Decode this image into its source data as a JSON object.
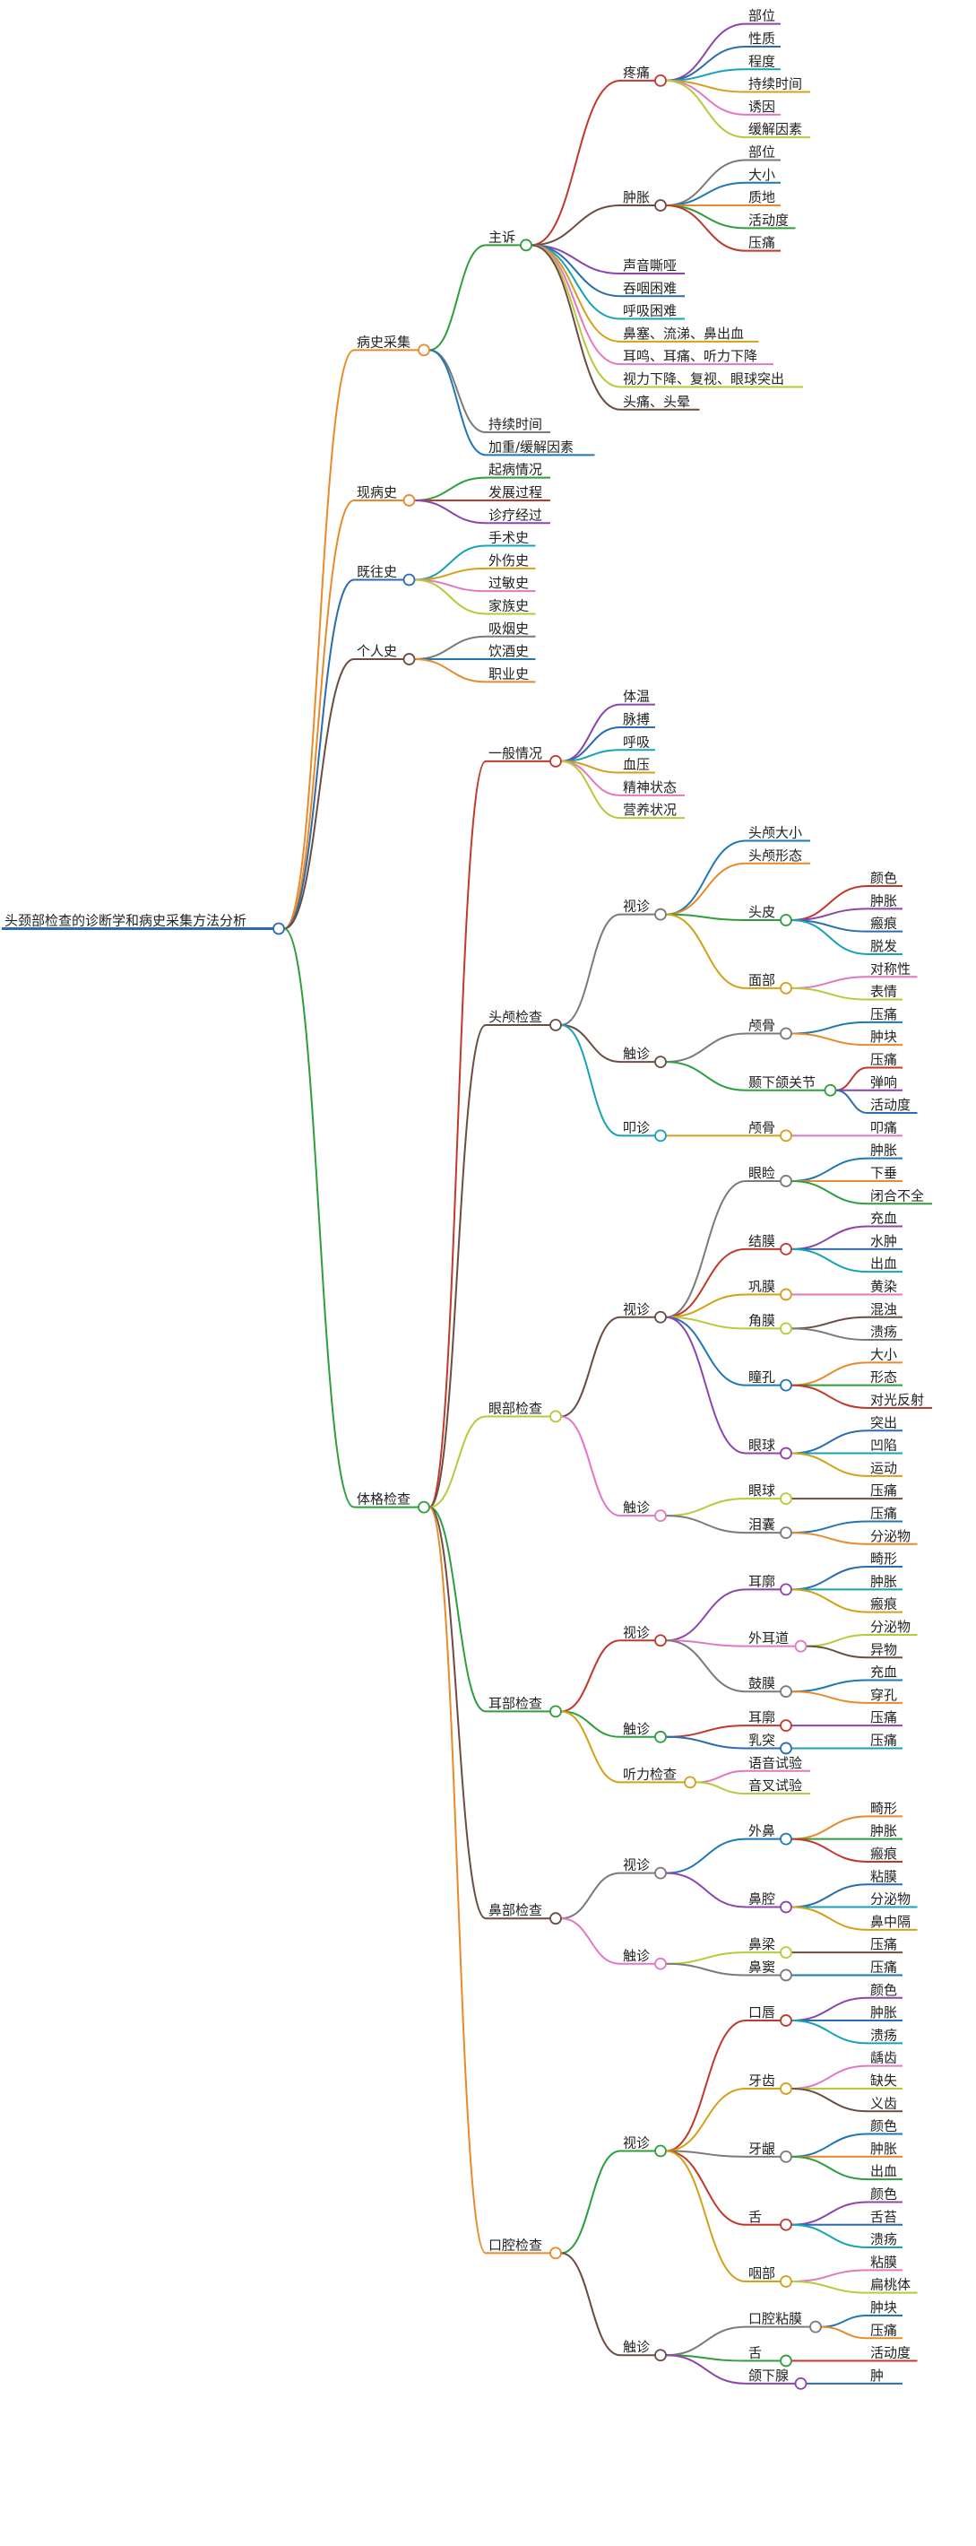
{
  "root": "头颈部检查的诊断学和病史采集方法分析",
  "branches": [
    {
      "label": "病史采集",
      "children": [
        {
          "label": "主诉",
          "children": [
            {
              "label": "疼痛",
              "children": [
                {
                  "label": "部位"
                },
                {
                  "label": "性质"
                },
                {
                  "label": "程度"
                },
                {
                  "label": "持续时间"
                },
                {
                  "label": "诱因"
                },
                {
                  "label": "缓解因素"
                }
              ]
            },
            {
              "label": "肿胀",
              "children": [
                {
                  "label": "部位"
                },
                {
                  "label": "大小"
                },
                {
                  "label": "质地"
                },
                {
                  "label": "活动度"
                },
                {
                  "label": "压痛"
                }
              ]
            },
            {
              "label": "声音嘶哑"
            },
            {
              "label": "吞咽困难"
            },
            {
              "label": "呼吸困难"
            },
            {
              "label": "鼻塞、流涕、鼻出血"
            },
            {
              "label": "耳鸣、耳痛、听力下降"
            },
            {
              "label": "视力下降、复视、眼球突出"
            },
            {
              "label": "头痛、头晕"
            }
          ]
        },
        {
          "label": "持续时间"
        },
        {
          "label": "加重/缓解因素"
        }
      ]
    },
    {
      "label": "现病史",
      "children": [
        {
          "label": "起病情况"
        },
        {
          "label": "发展过程"
        },
        {
          "label": "诊疗经过"
        }
      ]
    },
    {
      "label": "既往史",
      "children": [
        {
          "label": "手术史"
        },
        {
          "label": "外伤史"
        },
        {
          "label": "过敏史"
        },
        {
          "label": "家族史"
        }
      ]
    },
    {
      "label": "个人史",
      "children": [
        {
          "label": "吸烟史"
        },
        {
          "label": "饮酒史"
        },
        {
          "label": "职业史"
        }
      ]
    },
    {
      "label": "体格检查",
      "children": [
        {
          "label": "一般情况",
          "children": [
            {
              "label": "体温"
            },
            {
              "label": "脉搏"
            },
            {
              "label": "呼吸"
            },
            {
              "label": "血压"
            },
            {
              "label": "精神状态"
            },
            {
              "label": "营养状况"
            }
          ]
        },
        {
          "label": "头颅检查",
          "children": [
            {
              "label": "视诊",
              "children": [
                {
                  "label": "头颅大小"
                },
                {
                  "label": "头颅形态"
                },
                {
                  "label": "头皮",
                  "children": [
                    {
                      "label": "颜色"
                    },
                    {
                      "label": "肿胀"
                    },
                    {
                      "label": "瘢痕"
                    },
                    {
                      "label": "脱发"
                    }
                  ]
                },
                {
                  "label": "面部",
                  "children": [
                    {
                      "label": "对称性"
                    },
                    {
                      "label": "表情"
                    }
                  ]
                }
              ]
            },
            {
              "label": "触诊",
              "children": [
                {
                  "label": "颅骨",
                  "children": [
                    {
                      "label": "压痛"
                    },
                    {
                      "label": "肿块"
                    }
                  ]
                },
                {
                  "label": "颞下颌关节",
                  "children": [
                    {
                      "label": "压痛"
                    },
                    {
                      "label": "弹响"
                    },
                    {
                      "label": "活动度"
                    }
                  ]
                }
              ]
            },
            {
              "label": "叩诊",
              "children": [
                {
                  "label": "颅骨",
                  "children": [
                    {
                      "label": "叩痛"
                    }
                  ]
                }
              ]
            }
          ]
        },
        {
          "label": "眼部检查",
          "children": [
            {
              "label": "视诊",
              "children": [
                {
                  "label": "眼睑",
                  "children": [
                    {
                      "label": "肿胀"
                    },
                    {
                      "label": "下垂"
                    },
                    {
                      "label": "闭合不全"
                    }
                  ]
                },
                {
                  "label": "结膜",
                  "children": [
                    {
                      "label": "充血"
                    },
                    {
                      "label": "水肿"
                    },
                    {
                      "label": "出血"
                    }
                  ]
                },
                {
                  "label": "巩膜",
                  "children": [
                    {
                      "label": "黄染"
                    }
                  ]
                },
                {
                  "label": "角膜",
                  "children": [
                    {
                      "label": "混浊"
                    },
                    {
                      "label": "溃疡"
                    }
                  ]
                },
                {
                  "label": "瞳孔",
                  "children": [
                    {
                      "label": "大小"
                    },
                    {
                      "label": "形态"
                    },
                    {
                      "label": "对光反射"
                    }
                  ]
                },
                {
                  "label": "眼球",
                  "children": [
                    {
                      "label": "突出"
                    },
                    {
                      "label": "凹陷"
                    },
                    {
                      "label": "运动"
                    }
                  ]
                }
              ]
            },
            {
              "label": "触诊",
              "children": [
                {
                  "label": "眼球",
                  "children": [
                    {
                      "label": "压痛"
                    }
                  ]
                },
                {
                  "label": "泪囊",
                  "children": [
                    {
                      "label": "压痛"
                    },
                    {
                      "label": "分泌物"
                    }
                  ]
                }
              ]
            }
          ]
        },
        {
          "label": "耳部检查",
          "children": [
            {
              "label": "视诊",
              "children": [
                {
                  "label": "耳廓",
                  "children": [
                    {
                      "label": "畸形"
                    },
                    {
                      "label": "肿胀"
                    },
                    {
                      "label": "瘢痕"
                    }
                  ]
                },
                {
                  "label": "外耳道",
                  "children": [
                    {
                      "label": "分泌物"
                    },
                    {
                      "label": "异物"
                    }
                  ]
                },
                {
                  "label": "鼓膜",
                  "children": [
                    {
                      "label": "充血"
                    },
                    {
                      "label": "穿孔"
                    }
                  ]
                }
              ]
            },
            {
              "label": "触诊",
              "children": [
                {
                  "label": "耳廓",
                  "children": [
                    {
                      "label": "压痛"
                    }
                  ]
                },
                {
                  "label": "乳突",
                  "children": [
                    {
                      "label": "压痛"
                    }
                  ]
                }
              ]
            },
            {
              "label": "听力检查",
              "children": [
                {
                  "label": "语音试验"
                },
                {
                  "label": "音叉试验"
                }
              ]
            }
          ]
        },
        {
          "label": "鼻部检查",
          "children": [
            {
              "label": "视诊",
              "children": [
                {
                  "label": "外鼻",
                  "children": [
                    {
                      "label": "畸形"
                    },
                    {
                      "label": "肿胀"
                    },
                    {
                      "label": "瘢痕"
                    }
                  ]
                },
                {
                  "label": "鼻腔",
                  "children": [
                    {
                      "label": "粘膜"
                    },
                    {
                      "label": "分泌物"
                    },
                    {
                      "label": "鼻中隔"
                    }
                  ]
                }
              ]
            },
            {
              "label": "触诊",
              "children": [
                {
                  "label": "鼻梁",
                  "children": [
                    {
                      "label": "压痛"
                    }
                  ]
                },
                {
                  "label": "鼻窦",
                  "children": [
                    {
                      "label": "压痛"
                    }
                  ]
                }
              ]
            }
          ]
        },
        {
          "label": "口腔检查",
          "children": [
            {
              "label": "视诊",
              "children": [
                {
                  "label": "口唇",
                  "children": [
                    {
                      "label": "颜色"
                    },
                    {
                      "label": "肿胀"
                    },
                    {
                      "label": "溃疡"
                    }
                  ]
                },
                {
                  "label": "牙齿",
                  "children": [
                    {
                      "label": "龋齿"
                    },
                    {
                      "label": "缺失"
                    },
                    {
                      "label": "义齿"
                    }
                  ]
                },
                {
                  "label": "牙龈",
                  "children": [
                    {
                      "label": "颜色"
                    },
                    {
                      "label": "肿胀"
                    },
                    {
                      "label": "出血"
                    }
                  ]
                },
                {
                  "label": "舌",
                  "children": [
                    {
                      "label": "颜色"
                    },
                    {
                      "label": "舌苔"
                    },
                    {
                      "label": "溃疡"
                    }
                  ]
                },
                {
                  "label": "咽部",
                  "children": [
                    {
                      "label": "粘膜"
                    },
                    {
                      "label": "扁桃体"
                    }
                  ]
                }
              ]
            },
            {
              "label": "触诊",
              "children": [
                {
                  "label": "口腔粘膜",
                  "children": [
                    {
                      "label": "肿块"
                    },
                    {
                      "label": "压痛"
                    }
                  ]
                },
                {
                  "label": "舌",
                  "children": [
                    {
                      "label": "活动度"
                    }
                  ]
                },
                {
                  "label": "颌下腺",
                  "children": [
                    {
                      "label": "肿"
                    }
                  ]
                }
              ]
            }
          ]
        }
      ]
    }
  ],
  "palette": [
    "#e8892b",
    "#2e9e3e",
    "#c0392b",
    "#8e44ad",
    "#2b6cb0",
    "#17a2b8",
    "#d4a017",
    "#e377c2",
    "#b8c93a",
    "#6d4c41",
    "#7a7a7a",
    "#1f77b4"
  ]
}
